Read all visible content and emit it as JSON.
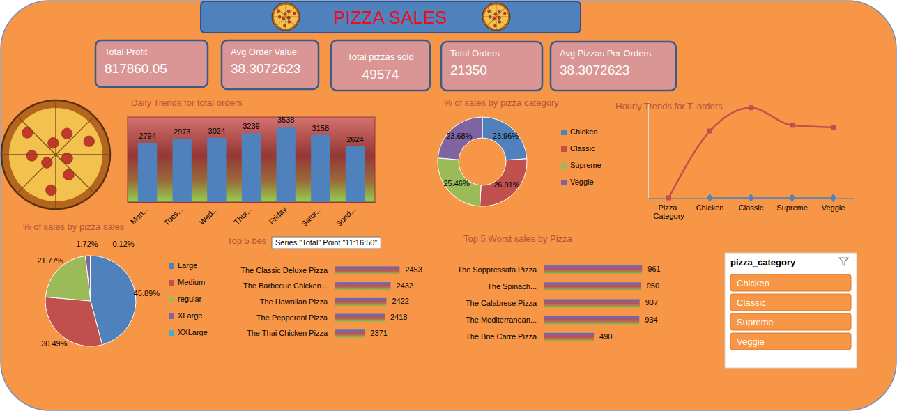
{
  "title": "PIZZA SALES",
  "kpis": [
    {
      "label": "Total Profit",
      "value": 817860.05
    },
    {
      "label": "Avg Order Value",
      "value": 38.3072623
    },
    {
      "label": "Total pizzas sold",
      "value": 49574
    },
    {
      "label": "Total Orders",
      "value": 21350
    },
    {
      "label": "Avg Pizzas Per Orders",
      "value": 38.3072623
    }
  ],
  "slicer": {
    "title": "pizza_category",
    "items": [
      "Chicken",
      "Classic",
      "Supreme",
      "Veggie"
    ]
  },
  "chart_data": [
    {
      "type": "bar",
      "title": "Daily Trends for total orders",
      "categories": [
        "Mon...",
        "Tues...",
        "Wed...",
        "Thur...",
        "Friday",
        "Satur...",
        "Sund..."
      ],
      "values": [
        2794,
        2973,
        3024,
        3239,
        3538,
        3158,
        2624
      ],
      "color": "#4f81bd",
      "ylim": [
        0,
        4000
      ],
      "data_labels": true,
      "tick_labels": "x"
    },
    {
      "type": "doughnut",
      "title": "% of sales by pizza category",
      "categories": [
        "Chicken",
        "Classic",
        "Supreme",
        "Veggie"
      ],
      "values": [
        23.96,
        26.91,
        25.46,
        23.68
      ],
      "value_labels": [
        "23.96%",
        "26.91%",
        "25.46%",
        "23.68%"
      ],
      "colors": [
        "#4f81bd",
        "#c0504d",
        "#9bbb59",
        "#8064a2"
      ],
      "legend": "right",
      "data_labels": true
    },
    {
      "type": "line",
      "title": "Hourly Trends for T. orders",
      "categories": [
        "Pizza Category",
        "Chicken",
        "Classic",
        "Supreme",
        "Veggie"
      ],
      "series": [
        {
          "color": "#c0504d",
          "marker": "square",
          "values": [
            0,
            11050,
            14888,
            11987,
            11649
          ]
        },
        {
          "color": "#4f81bd",
          "marker": "diamond",
          "values": [
            null,
            0,
            0,
            0,
            0
          ]
        }
      ],
      "ylim": [
        0,
        16000
      ],
      "tick_labels": "x"
    },
    {
      "type": "pie",
      "title": "% of sales by pizza sales",
      "categories": [
        "Large",
        "Medium",
        "regular",
        "XLarge",
        "XXLarge"
      ],
      "values": [
        45.89,
        30.49,
        21.77,
        1.72,
        0.12
      ],
      "value_labels": [
        "45.89%",
        "30.49%",
        "21.77%",
        "1.72%",
        "0.12%"
      ],
      "colors": [
        "#4f81bd",
        "#c0504d",
        "#9bbb59",
        "#8064a2",
        "#4bacc6"
      ],
      "legend": "right",
      "data_labels": true
    },
    {
      "type": "bar",
      "orientation": "horizontal",
      "title": "Top 5 bes",
      "categories": [
        "The Classic Deluxe Pizza",
        "The Barbecue Chicken...",
        "The Hawaiian Pizza",
        "The Pepperoni Pizza",
        "The Thai Chicken Pizza"
      ],
      "values": [
        2453,
        2432,
        2422,
        2418,
        2371
      ],
      "xlim": [
        2300,
        2500
      ],
      "data_labels": true,
      "tick_labels": "y",
      "annotations": [
        "Series \"Total\" Point \"11:16:50\""
      ]
    },
    {
      "type": "bar",
      "orientation": "horizontal",
      "title": "Top 5 Worst sales by Pizza",
      "categories": [
        "The Soppressata Pizza",
        "The Spinach...",
        "The Calabrese Pizza",
        "The Mediterranean...",
        "The Brie Carre Pizza"
      ],
      "values": [
        961,
        950,
        937,
        934,
        490
      ],
      "xlim": [
        0,
        1000
      ],
      "data_labels": true,
      "tick_labels": "y"
    }
  ]
}
